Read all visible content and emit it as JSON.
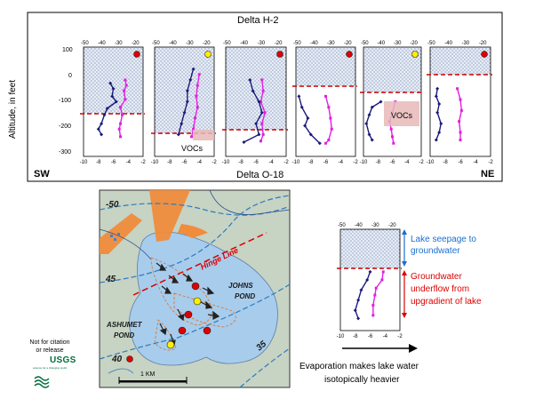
{
  "top_panel": {
    "title_top": "Delta H-2",
    "title_bottom": "Delta O-18",
    "y_axis_label": "Altitude, in feet",
    "y_ticks": [
      "100",
      "0",
      "-100",
      "-200",
      "-300"
    ],
    "top_ticks": [
      "-50",
      "-40",
      "-30",
      "-20"
    ],
    "bottom_ticks": [
      "-10",
      "-8",
      "-6",
      "-4",
      "-2"
    ],
    "left_direction": "SW",
    "right_direction": "NE",
    "vocs_label_1": "VOCs",
    "vocs_label_2": "VOCs"
  },
  "map": {
    "contour_50": "-50",
    "contour_45": "45",
    "contour_40": "40",
    "contour_35": "35",
    "hinge_line": "Hinge Line",
    "johns_pond": [
      "JOHNS",
      "POND"
    ],
    "ashumet_pond": [
      "ASHUMET",
      "POND"
    ],
    "scale_label": "1 KM"
  },
  "inset_plot": {
    "top_ticks": [
      "-50",
      "-40",
      "-30",
      "-20"
    ],
    "bottom_ticks": [
      "-10",
      "-8",
      "-6",
      "-4",
      "-2"
    ],
    "lake_seepage": [
      "Lake seepage to",
      "groundwater"
    ],
    "underflow": [
      "Groundwater",
      "underflow from",
      "upgradient of lake"
    ]
  },
  "caption": [
    "Evaporation makes lake water",
    "isotopically heavier"
  ],
  "footer": {
    "note": [
      "Not for citation",
      "or release"
    ],
    "usgs": "USGS",
    "usgs_tagline": "science for a changing world"
  },
  "colors": {
    "h2_series": "#1a1a7a",
    "o18_series": "#e020e0",
    "water_table_line": "#cc0000",
    "red_marker": "#dd0000",
    "yellow_marker": "#ffee00",
    "lake_seepage_text": "#1a6fd1",
    "underflow_text": "#dd0000",
    "pond_fill": "#a8ccec",
    "land_fill": "#c7d3c3",
    "gravel_pit": "#f08c3c"
  }
}
